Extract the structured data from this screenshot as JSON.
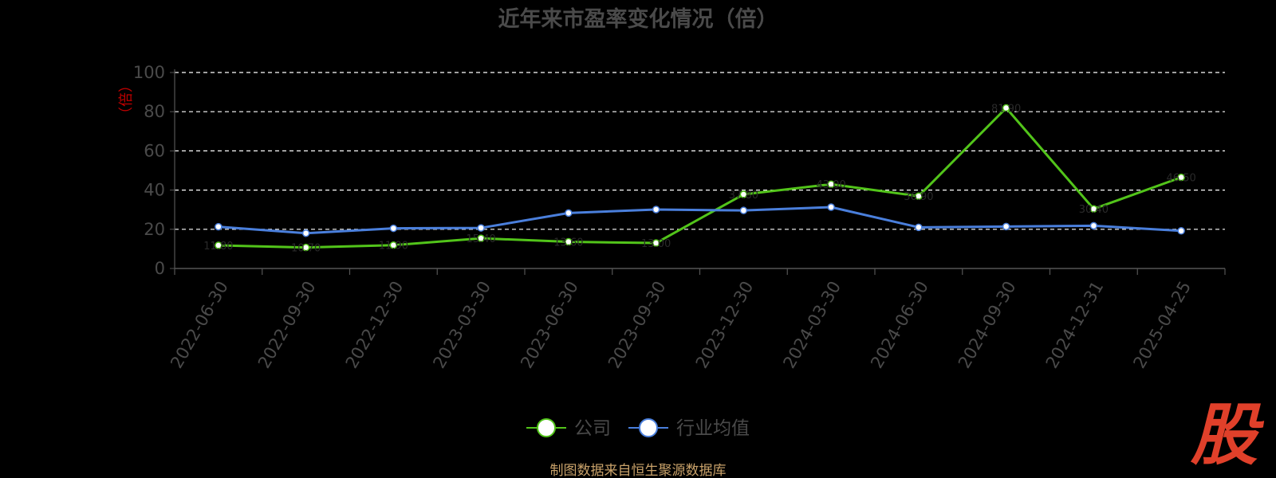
{
  "chart_data": {
    "type": "line",
    "title": "近年来市盈率变化情况（倍）",
    "ylabel": "（倍）",
    "ylim": [
      0,
      100
    ],
    "yticks": [
      0,
      20,
      40,
      60,
      80,
      100
    ],
    "grid": "horizontal-dashed",
    "legend_position": "bottom",
    "categories": [
      "2022-06-30",
      "2022-09-30",
      "2022-12-30",
      "2023-03-30",
      "2023-06-30",
      "2023-09-30",
      "2023-12-30",
      "2024-03-30",
      "2024-06-30",
      "2024-09-30",
      "2024-12-31",
      "2025-04-25"
    ],
    "series": [
      {
        "name": "公司",
        "color": "#52c41a",
        "values": [
          11.8,
          10.7,
          11.9,
          15.4,
          13.6,
          13.0,
          37.8,
          43.0,
          36.9,
          81.9,
          30.4,
          46.5
        ]
      },
      {
        "name": "行业均值",
        "color": "#4a7fdc",
        "values": [
          21.3,
          18.0,
          20.5,
          20.7,
          28.3,
          30.1,
          29.6,
          31.3,
          21.0,
          21.4,
          21.8,
          19.2
        ]
      }
    ]
  },
  "footer": {
    "source": "制图数据来自恒生聚源数据库",
    "logo_text": "股"
  }
}
